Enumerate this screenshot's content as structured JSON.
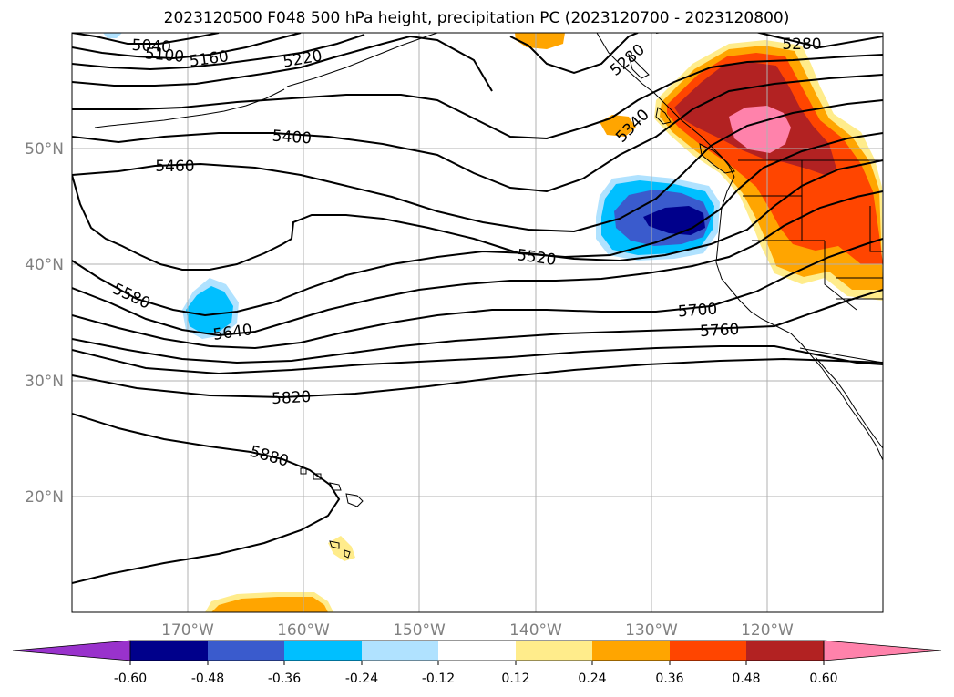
{
  "title": "2023120500 F048 500 hPa height, precipitation PC (2023120700 - 2023120800)",
  "map": {
    "projection": "Plate Carrée",
    "lon_range": [
      -180,
      -110
    ],
    "lat_range": [
      10,
      60
    ],
    "gridlines": true,
    "lon_tick_labels": [
      "170°W",
      "160°W",
      "150°W",
      "140°W",
      "130°W",
      "120°W"
    ],
    "lon_tick_values": [
      -170,
      -160,
      -150,
      -140,
      -130,
      -120
    ],
    "lat_tick_labels": [
      "50°N",
      "40°N",
      "30°N",
      "20°N"
    ],
    "lat_tick_values": [
      50,
      40,
      30,
      20
    ],
    "contour_color": "#000000"
  },
  "chart_data": {
    "type": "map",
    "contour_field": "500 hPa height",
    "contour_labels": [
      {
        "text": "5040",
        "lon": -177.1,
        "lat": 59.2
      },
      {
        "text": "5100",
        "lon": -176.0,
        "lat": 58.1
      },
      {
        "text": "5160",
        "lon": -170.0,
        "lat": 57.7
      },
      {
        "text": "5220",
        "lon": -160.0,
        "lat": 57.7
      },
      {
        "text": "5280",
        "lon": -136.5,
        "lat": 57.5
      },
      {
        "text": "5280",
        "lon": -117.0,
        "lat": 59.1
      },
      {
        "text": "5340",
        "lon": -133.5,
        "lat": 51.6
      },
      {
        "text": "5400",
        "lon": -159.0,
        "lat": 50.9
      },
      {
        "text": "5460",
        "lon": -170.5,
        "lat": 48.6
      },
      {
        "text": "5520",
        "lon": -140.0,
        "lat": 40.6
      },
      {
        "text": "5580",
        "lon": -175.0,
        "lat": 37.3
      },
      {
        "text": "5640",
        "lon": -166.0,
        "lat": 34.3
      },
      {
        "text": "5700",
        "lon": -123.0,
        "lat": 35.9
      },
      {
        "text": "5760",
        "lon": -121.0,
        "lat": 34.1
      },
      {
        "text": "5820",
        "lon": -160.0,
        "lat": 28.7
      },
      {
        "text": "5880",
        "lon": -162.0,
        "lat": 23.4
      }
    ],
    "shaded_field": "precipitation PC",
    "colorbar": {
      "orientation": "horizontal",
      "extend": "both",
      "ticks": [
        "-0.60",
        "-0.48",
        "-0.36",
        "-0.24",
        "-0.12",
        "0.12",
        "0.24",
        "0.36",
        "0.48",
        "0.60"
      ],
      "colors": [
        "#9932cc",
        "#00008b",
        "#3a5bcd",
        "#00bfff",
        "#b0e2ff",
        "#ffffff",
        "#ffec8b",
        "#ffa500",
        "#ff4500",
        "#b22222",
        "#ff82ab"
      ]
    },
    "shaded_regions": [
      {
        "level": ">=0.60",
        "lon": -119.5,
        "lat": 52.5
      },
      {
        "level": "0.48-0.60",
        "lon": -120.5,
        "lat": 50.0
      },
      {
        "level": "0.36-0.48",
        "lon": -116.5,
        "lat": 45.0
      },
      {
        "level": "0.24-0.36",
        "lon": -113.0,
        "lat": 40.0
      },
      {
        "level": "0.12-0.24",
        "lon": -160.0,
        "lat": 10.5
      },
      {
        "level": "0.24-0.36",
        "lon": -162.0,
        "lat": 10.3
      },
      {
        "level": "0.12-0.24",
        "lon": -157.5,
        "lat": 15.0
      },
      {
        "level": "0.24-0.36",
        "lon": -139.5,
        "lat": 59.5
      },
      {
        "level": "0.24-0.36",
        "lon": -133.0,
        "lat": 52.0
      },
      {
        "level": "-0.24 to -0.12",
        "lon": -130.0,
        "lat": 43.5
      },
      {
        "level": "-0.36 to -0.24",
        "lon": -130.5,
        "lat": 43.5
      },
      {
        "level": "-0.48 to -0.36",
        "lon": -129.5,
        "lat": 43.8
      },
      {
        "level": "<=-0.48",
        "lon": -127.5,
        "lat": 43.8
      },
      {
        "level": "-0.36 to -0.24",
        "lon": -168.0,
        "lat": 36.0
      }
    ]
  }
}
